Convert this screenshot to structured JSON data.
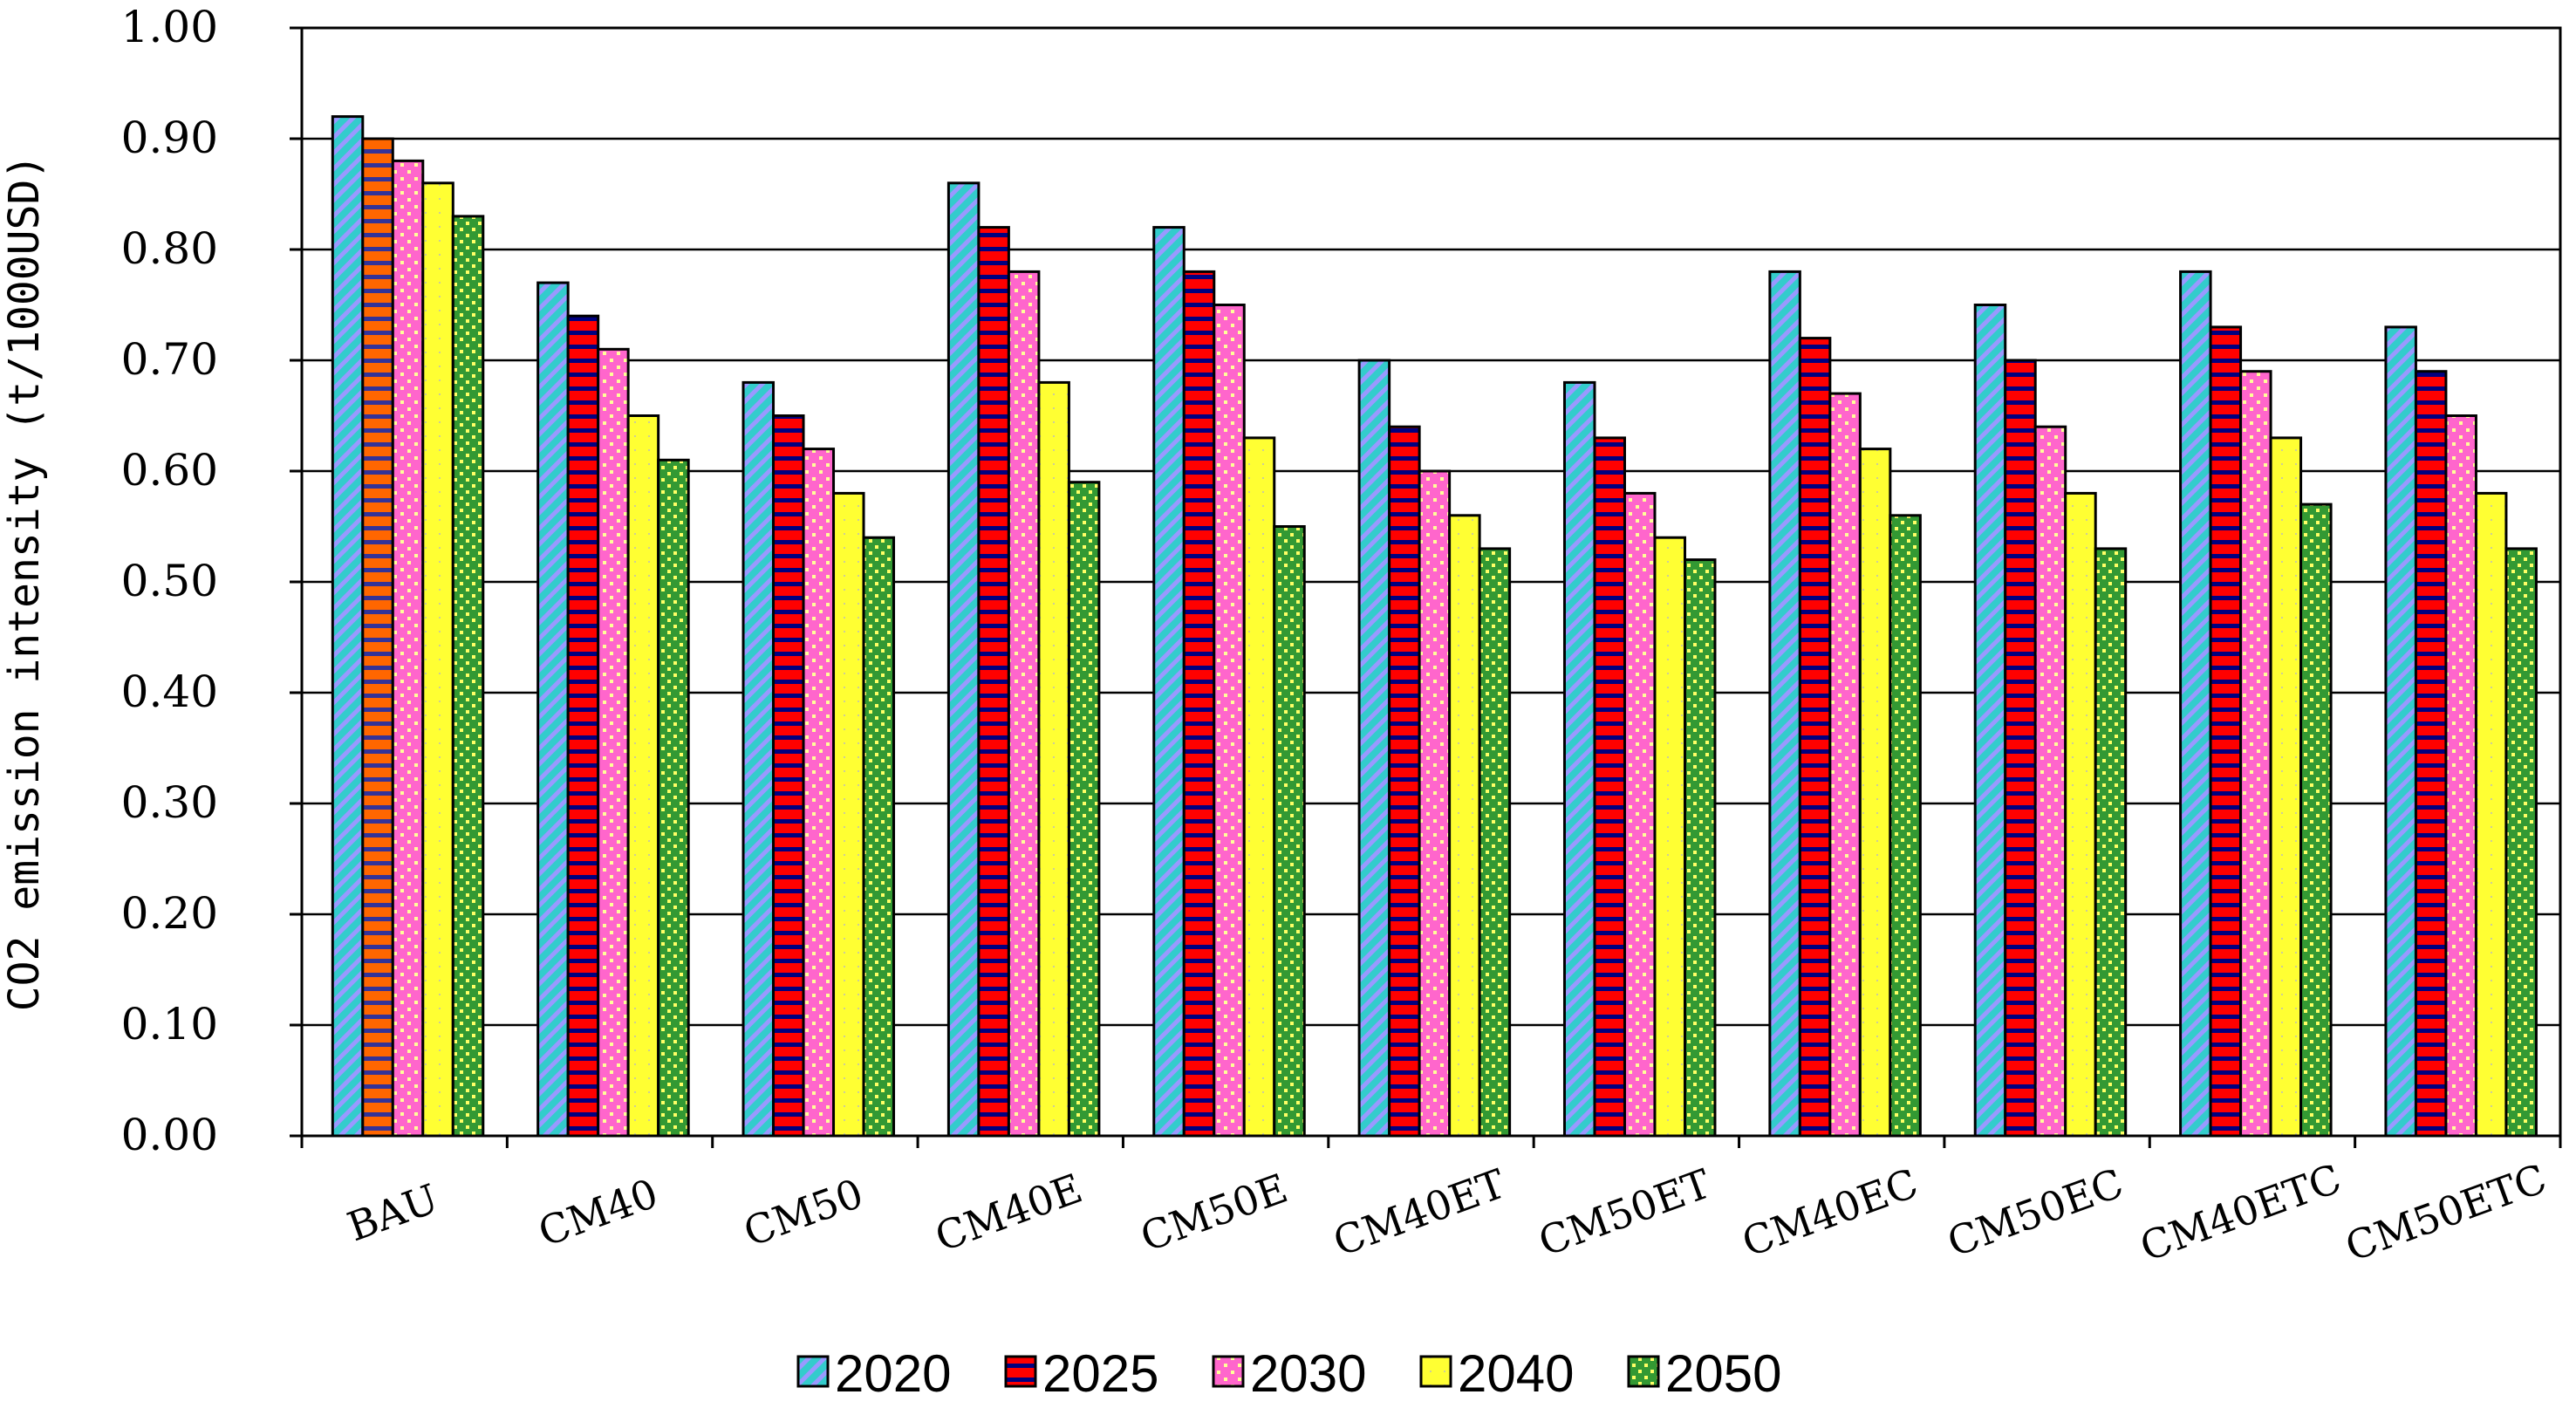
{
  "chart_data": {
    "type": "bar",
    "title": "",
    "xlabel": "",
    "ylabel": "CO2 emission intensity (t/1000USD)",
    "ylim": [
      0,
      1.0
    ],
    "yticks": [
      "0.00",
      "0.10",
      "0.20",
      "0.30",
      "0.40",
      "0.50",
      "0.60",
      "0.70",
      "0.80",
      "0.90",
      "1.00"
    ],
    "grid": true,
    "legend_position": "bottom",
    "categories": [
      "BAU",
      "CM40",
      "CM50",
      "CM40E",
      "CM50E",
      "CM40ET",
      "CM50ET",
      "CM40EC",
      "CM50EC",
      "CM40ETC",
      "CM50ETC"
    ],
    "series": [
      {
        "name": "2020",
        "color": "#33CCCC",
        "values": [
          0.92,
          0.77,
          0.68,
          0.86,
          0.82,
          0.7,
          0.68,
          0.78,
          0.75,
          0.78,
          0.73
        ]
      },
      {
        "name": "2025",
        "color": "#FF0000",
        "values": [
          0.9,
          0.74,
          0.65,
          0.82,
          0.78,
          0.64,
          0.63,
          0.72,
          0.7,
          0.73,
          0.69
        ]
      },
      {
        "name": "2030",
        "color": "#FF66CC",
        "values": [
          0.88,
          0.71,
          0.62,
          0.78,
          0.75,
          0.6,
          0.58,
          0.67,
          0.64,
          0.69,
          0.65
        ]
      },
      {
        "name": "2040",
        "color": "#FFFF33",
        "values": [
          0.86,
          0.65,
          0.58,
          0.68,
          0.63,
          0.56,
          0.54,
          0.62,
          0.58,
          0.63,
          0.58
        ]
      },
      {
        "name": "2050",
        "color": "#33CC33",
        "values": [
          0.83,
          0.61,
          0.54,
          0.59,
          0.55,
          0.53,
          0.52,
          0.56,
          0.53,
          0.57,
          0.53
        ]
      }
    ]
  }
}
